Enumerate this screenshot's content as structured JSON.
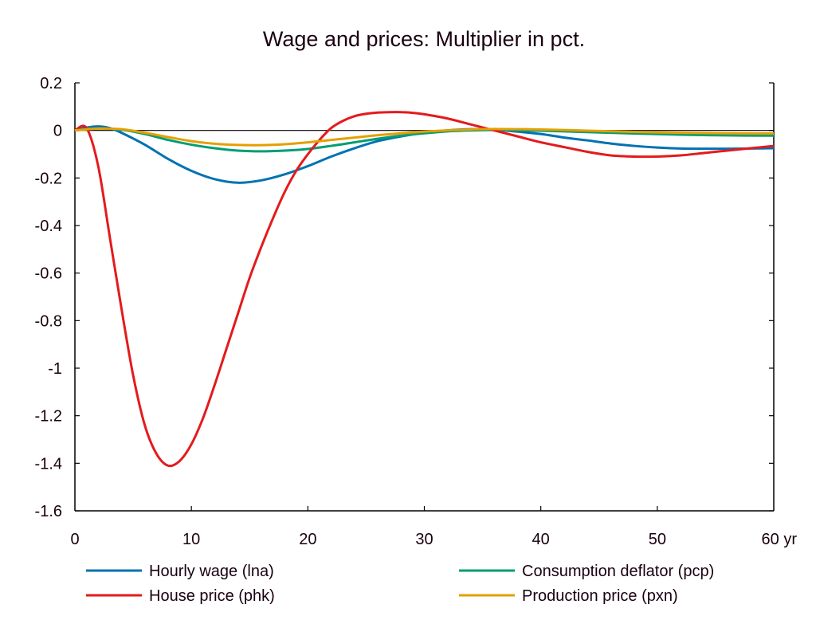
{
  "chart_data": {
    "type": "line",
    "title": "Wage and prices: Multiplier in pct.",
    "xlabel": "",
    "ylabel": "",
    "x_unit_suffix": "yr",
    "xlim": [
      0,
      60
    ],
    "ylim": [
      -1.6,
      0.2
    ],
    "x_ticks": [
      0,
      10,
      20,
      30,
      40,
      50,
      60
    ],
    "x_tick_labels": [
      "0",
      "10",
      "20",
      "30",
      "40",
      "50",
      "60 yr"
    ],
    "y_ticks": [
      0.2,
      0,
      -0.2,
      -0.4,
      -0.6,
      -0.8,
      -1,
      -1.2,
      -1.4,
      -1.6
    ],
    "y_tick_labels": [
      "0.2",
      "0",
      "-0.2",
      "-0.4",
      "-0.6",
      "-0.8",
      "-1",
      "-1.2",
      "-1.4",
      "-1.6"
    ],
    "grid": false,
    "zero_line": true,
    "legend_position": "bottom",
    "series": [
      {
        "name": "Hourly wage (lna)",
        "color": "#0072b2",
        "x": [
          0,
          1,
          2,
          3,
          4,
          6,
          8,
          10,
          12,
          14,
          16,
          18,
          20,
          22,
          24,
          26,
          28,
          30,
          32,
          34,
          36,
          38,
          40,
          42,
          44,
          46,
          48,
          50,
          52,
          54,
          56,
          58,
          60
        ],
        "values": [
          0,
          0.012,
          0.017,
          0.01,
          -0.01,
          -0.06,
          -0.12,
          -0.17,
          -0.205,
          -0.22,
          -0.21,
          -0.185,
          -0.15,
          -0.11,
          -0.075,
          -0.045,
          -0.025,
          -0.01,
          0.0,
          0.005,
          0.003,
          -0.005,
          -0.015,
          -0.03,
          -0.042,
          -0.055,
          -0.065,
          -0.072,
          -0.076,
          -0.077,
          -0.077,
          -0.076,
          -0.075
        ]
      },
      {
        "name": "Consumption deflator (pcp)",
        "color": "#009e73",
        "x": [
          0,
          2,
          4,
          6,
          8,
          10,
          12,
          14,
          16,
          18,
          20,
          22,
          24,
          26,
          28,
          30,
          32,
          34,
          36,
          40,
          44,
          48,
          52,
          56,
          60
        ],
        "values": [
          0,
          0.008,
          0.003,
          -0.015,
          -0.04,
          -0.06,
          -0.075,
          -0.085,
          -0.088,
          -0.085,
          -0.078,
          -0.065,
          -0.05,
          -0.035,
          -0.022,
          -0.012,
          -0.004,
          0.0,
          0.002,
          -0.001,
          -0.007,
          -0.013,
          -0.018,
          -0.021,
          -0.022
        ]
      },
      {
        "name": "House price (phk)",
        "color": "#e41a1c",
        "x": [
          0,
          1,
          2,
          3,
          4,
          5,
          6,
          7,
          8,
          9,
          10,
          11,
          12,
          13,
          14,
          15,
          16,
          17,
          18,
          19,
          20,
          21,
          22,
          23,
          24,
          25,
          26,
          27,
          28,
          29,
          30,
          32,
          34,
          36,
          38,
          40,
          42,
          44,
          46,
          48,
          50,
          52,
          54,
          56,
          58,
          60
        ],
        "values": [
          0,
          0.01,
          -0.15,
          -0.45,
          -0.75,
          -1.03,
          -1.24,
          -1.36,
          -1.41,
          -1.39,
          -1.32,
          -1.21,
          -1.07,
          -0.92,
          -0.77,
          -0.62,
          -0.49,
          -0.37,
          -0.26,
          -0.17,
          -0.1,
          -0.04,
          0.01,
          0.04,
          0.06,
          0.07,
          0.075,
          0.077,
          0.077,
          0.074,
          0.068,
          0.05,
          0.025,
          0.0,
          -0.025,
          -0.05,
          -0.07,
          -0.09,
          -0.105,
          -0.11,
          -0.11,
          -0.105,
          -0.095,
          -0.085,
          -0.075,
          -0.065
        ]
      },
      {
        "name": "Production price (pxn)",
        "color": "#e69f00",
        "x": [
          0,
          2,
          4,
          6,
          8,
          10,
          12,
          14,
          16,
          18,
          20,
          22,
          24,
          26,
          28,
          30,
          32,
          34,
          36,
          40,
          44,
          48,
          52,
          56,
          60
        ],
        "values": [
          0,
          0.008,
          0.005,
          -0.01,
          -0.028,
          -0.045,
          -0.056,
          -0.061,
          -0.062,
          -0.058,
          -0.05,
          -0.04,
          -0.03,
          -0.02,
          -0.012,
          -0.005,
          0.0,
          0.004,
          0.006,
          0.004,
          -0.001,
          -0.006,
          -0.01,
          -0.012,
          -0.013
        ]
      }
    ],
    "legend_order": [
      0,
      1,
      2,
      3
    ]
  }
}
